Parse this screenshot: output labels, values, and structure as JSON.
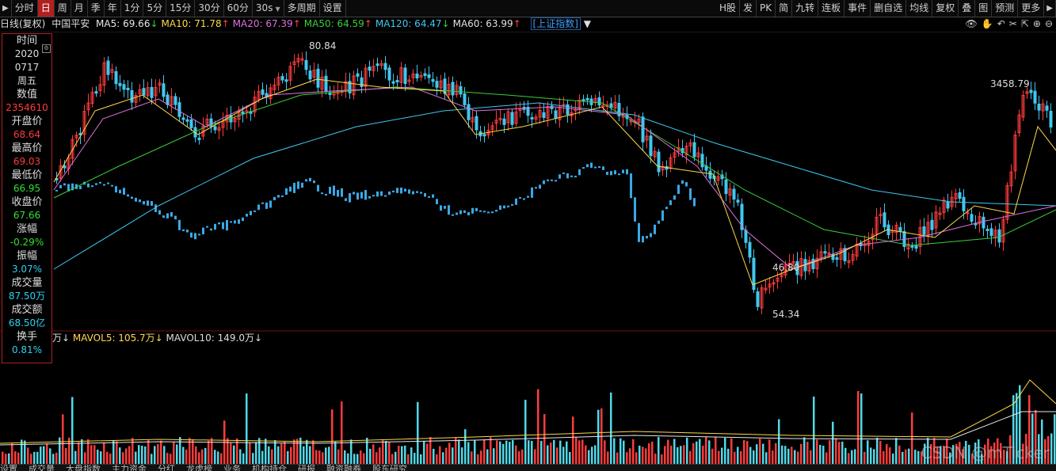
{
  "toolbar": {
    "left": [
      "分时",
      "日",
      "周",
      "月",
      "季",
      "年",
      "1分",
      "5分",
      "15分",
      "30分",
      "60分"
    ],
    "active": "日",
    "period_select": "30s",
    "multi_period": "多周期",
    "settings": "设置",
    "right": [
      "H股",
      "发",
      "PK",
      "简",
      "九转",
      "连板",
      "事件",
      "删自选",
      "均线",
      "复权",
      "叠",
      "图",
      "预测",
      "更多"
    ]
  },
  "info": {
    "period": "日线(复权)",
    "stock": "中国平安",
    "ma": [
      {
        "label": "MA5: 69.66",
        "dir": "down",
        "color": "#e8e8e8"
      },
      {
        "label": "MA10: 71.78",
        "dir": "up",
        "color": "#ffd84a"
      },
      {
        "label": "MA20: 67.39",
        "dir": "up",
        "color": "#e070e0"
      },
      {
        "label": "MA50: 64.59",
        "dir": "up",
        "color": "#38d038"
      },
      {
        "label": "MA120: 64.47",
        "dir": "down",
        "color": "#40c8f0"
      },
      {
        "label": "MA60: 63.99",
        "dir": "up",
        "color": "#e0e0e0"
      }
    ],
    "index_link": "[上证指数]"
  },
  "crossbox": [
    {
      "label": "时间",
      "values": [
        {
          "v": "2020",
          "c": "white"
        },
        {
          "v": "0717",
          "c": "white"
        },
        {
          "v": "周五",
          "c": "white"
        }
      ]
    },
    {
      "label": "数值",
      "values": [
        {
          "v": "2354610",
          "c": "red"
        }
      ]
    },
    {
      "label": "开盘价",
      "values": [
        {
          "v": "68.64",
          "c": "red"
        }
      ]
    },
    {
      "label": "最高价",
      "values": [
        {
          "v": "69.03",
          "c": "red"
        }
      ]
    },
    {
      "label": "最低价",
      "values": [
        {
          "v": "66.95",
          "c": "green"
        }
      ]
    },
    {
      "label": "收盘价",
      "values": [
        {
          "v": "67.66",
          "c": "green"
        }
      ]
    },
    {
      "label": "涨幅",
      "values": [
        {
          "v": "-0.29%",
          "c": "green"
        }
      ]
    },
    {
      "label": "振幅",
      "values": [
        {
          "v": "3.07%",
          "c": "cyan"
        }
      ]
    },
    {
      "label": "成交量",
      "values": [
        {
          "v": "87.50万",
          "c": "cyan"
        }
      ]
    },
    {
      "label": "成交额",
      "values": [
        {
          "v": "68.50亿",
          "c": "cyan"
        }
      ]
    },
    {
      "label": "换手",
      "values": [
        {
          "v": "0.81%",
          "c": "cyan"
        }
      ]
    }
  ],
  "volume_info": {
    "prefix": "万↓",
    "mavol5": "MAVOL5: 105.7万↓",
    "mavol10": "MAVOL10: 149.0万↓"
  },
  "annotations": {
    "high1": "80.84",
    "high2": "3458.79",
    "low1": "46.80",
    "low2": "54.34"
  },
  "status_tabs": [
    "设置",
    "成交量",
    "大盘指数",
    "主力资金",
    "分红",
    "龙虎榜",
    "业务",
    "机构持仓",
    "研报",
    "融资融券",
    "股东研究"
  ],
  "watermark": "CSDN @mTicker",
  "colors": {
    "up": "#ff3b3b",
    "down": "#40c8f0",
    "accent": "#b02020"
  }
}
